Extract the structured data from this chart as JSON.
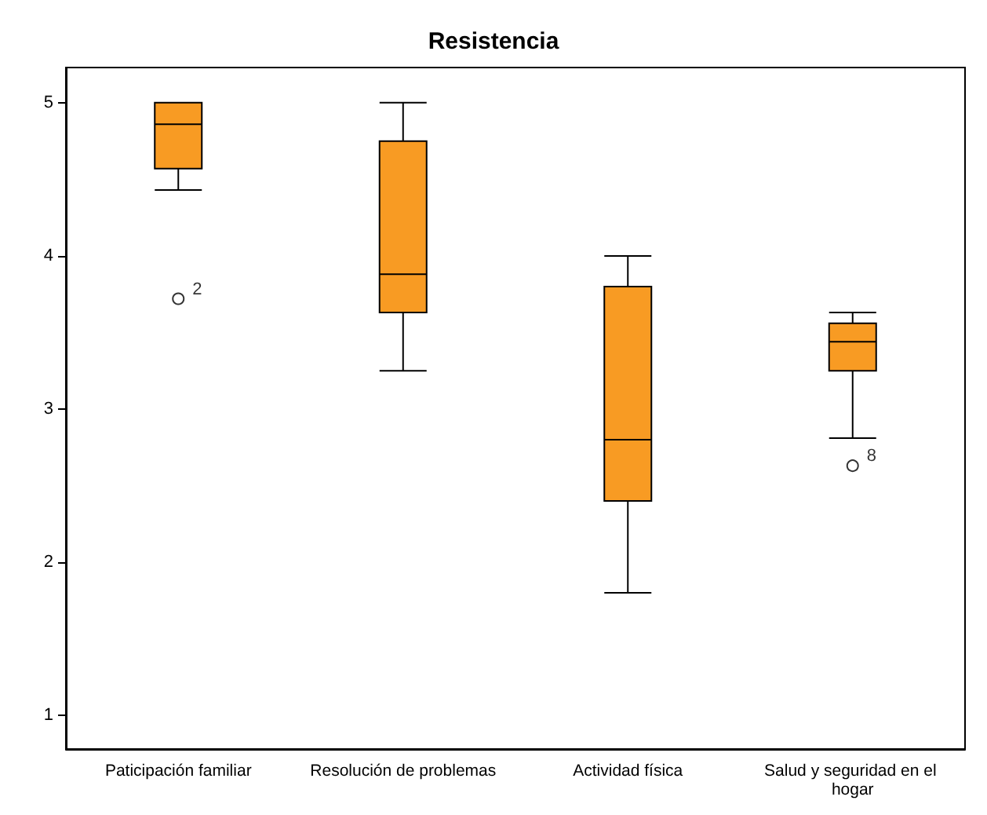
{
  "chart_data": {
    "type": "box",
    "title": "Resistencia",
    "categories": [
      "Paticipación familiar",
      "Resolución de problemas",
      "Actividad física",
      "Salud y seguridad en el hogar"
    ],
    "color": "#f89b23",
    "boxes": [
      {
        "low": 4.43,
        "q1": 4.57,
        "median": 4.86,
        "q3": 5.0,
        "high": 5.0,
        "outliers": [
          3.72
        ]
      },
      {
        "low": 3.25,
        "q1": 3.63,
        "median": 3.88,
        "q3": 4.75,
        "high": 5.0
      },
      {
        "low": 1.8,
        "q1": 2.4,
        "median": 2.8,
        "q3": 3.8,
        "high": 4.0
      },
      {
        "low": 2.81,
        "q1": 3.25,
        "median": 3.44,
        "q3": 3.56,
        "high": 3.63,
        "outliers": [
          2.63
        ]
      }
    ],
    "ylim": [
      0.78,
      5.23
    ],
    "yticks": [
      1,
      2,
      3,
      4,
      5
    ],
    "grid": false,
    "annotations": [
      "2",
      "8"
    ]
  }
}
